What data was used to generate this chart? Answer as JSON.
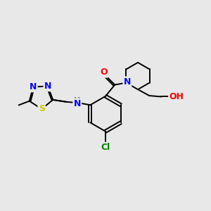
{
  "bg_color": "#e8e8e8",
  "bond_color": "#000000",
  "atom_colors": {
    "N": "#0000ff",
    "O": "#ff0000",
    "S": "#cccc00",
    "Cl": "#008000",
    "H": "#777777",
    "C": "#000000"
  },
  "font_size": 9,
  "lw": 1.4
}
